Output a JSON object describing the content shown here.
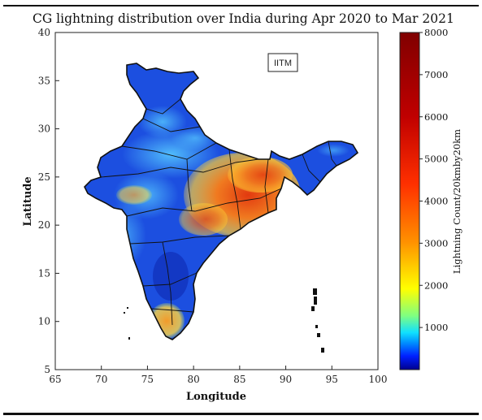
{
  "title": "CG lightning distribution over India during Apr 2020 to Mar 2021",
  "watermark": "IITM",
  "axes": {
    "xlabel": "Longitude",
    "ylabel": "Latitude",
    "xlim": [
      65,
      100
    ],
    "ylim": [
      5,
      40
    ],
    "xticks": [
      "65",
      "70",
      "75",
      "80",
      "85",
      "90",
      "95",
      "100"
    ],
    "yticks": [
      "5",
      "10",
      "15",
      "20",
      "25",
      "30",
      "35",
      "40"
    ]
  },
  "colorbar": {
    "label": "Lightning Count/20kmby20km",
    "range": [
      0,
      8000
    ],
    "ticks": [
      "1000",
      "2000",
      "3000",
      "4000",
      "5000",
      "6000",
      "7000",
      "8000"
    ],
    "colors": [
      "#00008f",
      "#0020ff",
      "#0090ff",
      "#10e0ff",
      "#80ff80",
      "#ffff00",
      "#ff9000",
      "#ff3000",
      "#c00000",
      "#800000"
    ]
  },
  "map": {
    "low_color": "#1a45d8",
    "mid_color": "#7fd0ff",
    "high_color": "#e8501a",
    "peak_color": "#f7b733"
  }
}
